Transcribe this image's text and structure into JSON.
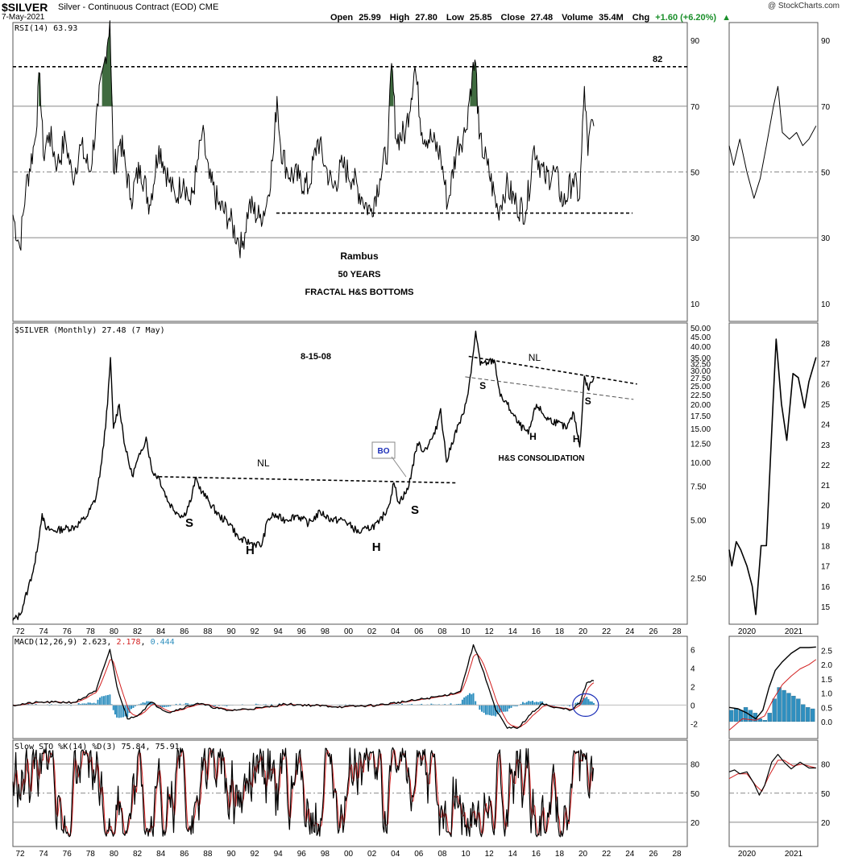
{
  "header": {
    "symbol": "$SILVER",
    "name": "Silver - Continuous Contract (EOD)",
    "exchange": "CME",
    "date": "7-May-2021",
    "copyright": "@ StockCharts.com",
    "open_label": "Open",
    "open": "25.99",
    "high_label": "High",
    "high": "27.80",
    "low_label": "Low",
    "low": "25.85",
    "close_label": "Close",
    "close": "27.48",
    "volume_label": "Volume",
    "volume": "35.4M",
    "chg_label": "Chg",
    "chg": "+1.60 (+6.20%)"
  },
  "colors": {
    "rsi_fill": "#3f6b3f",
    "macd_signal": "#d21f1f",
    "macd_hist": "#2f8fbf",
    "macd_hist_value": "#2f8fbf",
    "grid": "#888888"
  },
  "year_ticks": [
    "72",
    "74",
    "76",
    "78",
    "80",
    "82",
    "84",
    "86",
    "88",
    "90",
    "92",
    "94",
    "96",
    "98",
    "00",
    "02",
    "04",
    "06",
    "08",
    "10",
    "12",
    "14",
    "16",
    "18",
    "20",
    "22",
    "24",
    "26",
    "28"
  ],
  "inset_year_ticks": [
    "2020",
    "2021"
  ],
  "rsi": {
    "label": "RSI(14) 63.93",
    "ticks": [
      "90",
      "70",
      "50",
      "30",
      "10"
    ],
    "level_82": "82",
    "notes": [
      "Rambus",
      "50 YEARS",
      "FRACTAL H&S BOTTOMS"
    ]
  },
  "price": {
    "label": "$SILVER (Monthly) 27.48 (7 May)",
    "ticks": [
      "50.00",
      "45.00",
      "40.00",
      "35.00",
      "32.50",
      "30.00",
      "27.50",
      "25.00",
      "22.50",
      "20.00",
      "17.50",
      "15.00",
      "12.50",
      "10.00",
      "7.50",
      "5.00",
      "2.50"
    ],
    "inset_ticks": [
      "28",
      "27",
      "26",
      "25",
      "24",
      "23",
      "22",
      "21",
      "20",
      "19",
      "18",
      "17",
      "16",
      "15"
    ],
    "annotations": {
      "date_note": "8-15-08",
      "nl_left": "NL",
      "nl_right": "NL",
      "bo": "BO",
      "hs_consolidation": "H&S CONSOLIDATION",
      "s1": "S",
      "h1": "H",
      "h2": "H",
      "s2": "S",
      "s3": "S",
      "h3": "H",
      "h4": "H",
      "s4": "S"
    }
  },
  "macd": {
    "label_prefix": "MACD(12,26,9)",
    "value": "2.623",
    "signal": "2.178",
    "hist": "0.444",
    "ticks": [
      "6",
      "4",
      "2",
      "0",
      "-2"
    ],
    "inset_ticks": [
      "2.5",
      "2.0",
      "1.5",
      "1.0",
      "0.5",
      "0.0"
    ]
  },
  "sto": {
    "label": "Slow STO %K(14) %D(3) 75.84, 75.91",
    "ticks": [
      "80",
      "50",
      "20"
    ]
  },
  "chart_data": {
    "type": "line",
    "title": "$SILVER Silver - Continuous Contract (EOD) CME",
    "x": [
      "1972",
      "1974",
      "1976",
      "1978",
      "1980",
      "1982",
      "1984",
      "1986",
      "1988",
      "1990",
      "1992",
      "1994",
      "1996",
      "1998",
      "2000",
      "2002",
      "2004",
      "2006",
      "2008",
      "2010",
      "2011",
      "2012",
      "2014",
      "2016",
      "2018",
      "2020",
      "2021"
    ],
    "xlabel": "",
    "ylabel": "",
    "ylim": [
      1.5,
      50
    ],
    "scale": "log",
    "series": [
      {
        "name": "$SILVER (Monthly)",
        "values": [
          1.7,
          2.2,
          4.3,
          5.4,
          35.0,
          10.5,
          8.0,
          5.5,
          6.6,
          4.4,
          3.8,
          5.2,
          5.1,
          5.0,
          5.0,
          4.4,
          6.5,
          12.0,
          15.0,
          30.0,
          48.0,
          32.0,
          18.0,
          15.0,
          15.5,
          16.0,
          27.48
        ]
      }
    ],
    "annotations": [
      "82",
      "Rambus",
      "50 YEARS",
      "FRACTAL H&S BOTTOMS",
      "8-15-08",
      "NL",
      "BO",
      "S",
      "H",
      "H",
      "S",
      "NL",
      "S",
      "H",
      "H",
      "S",
      "H&S CONSOLIDATION"
    ],
    "legend_position": "top-left",
    "grid": true
  }
}
